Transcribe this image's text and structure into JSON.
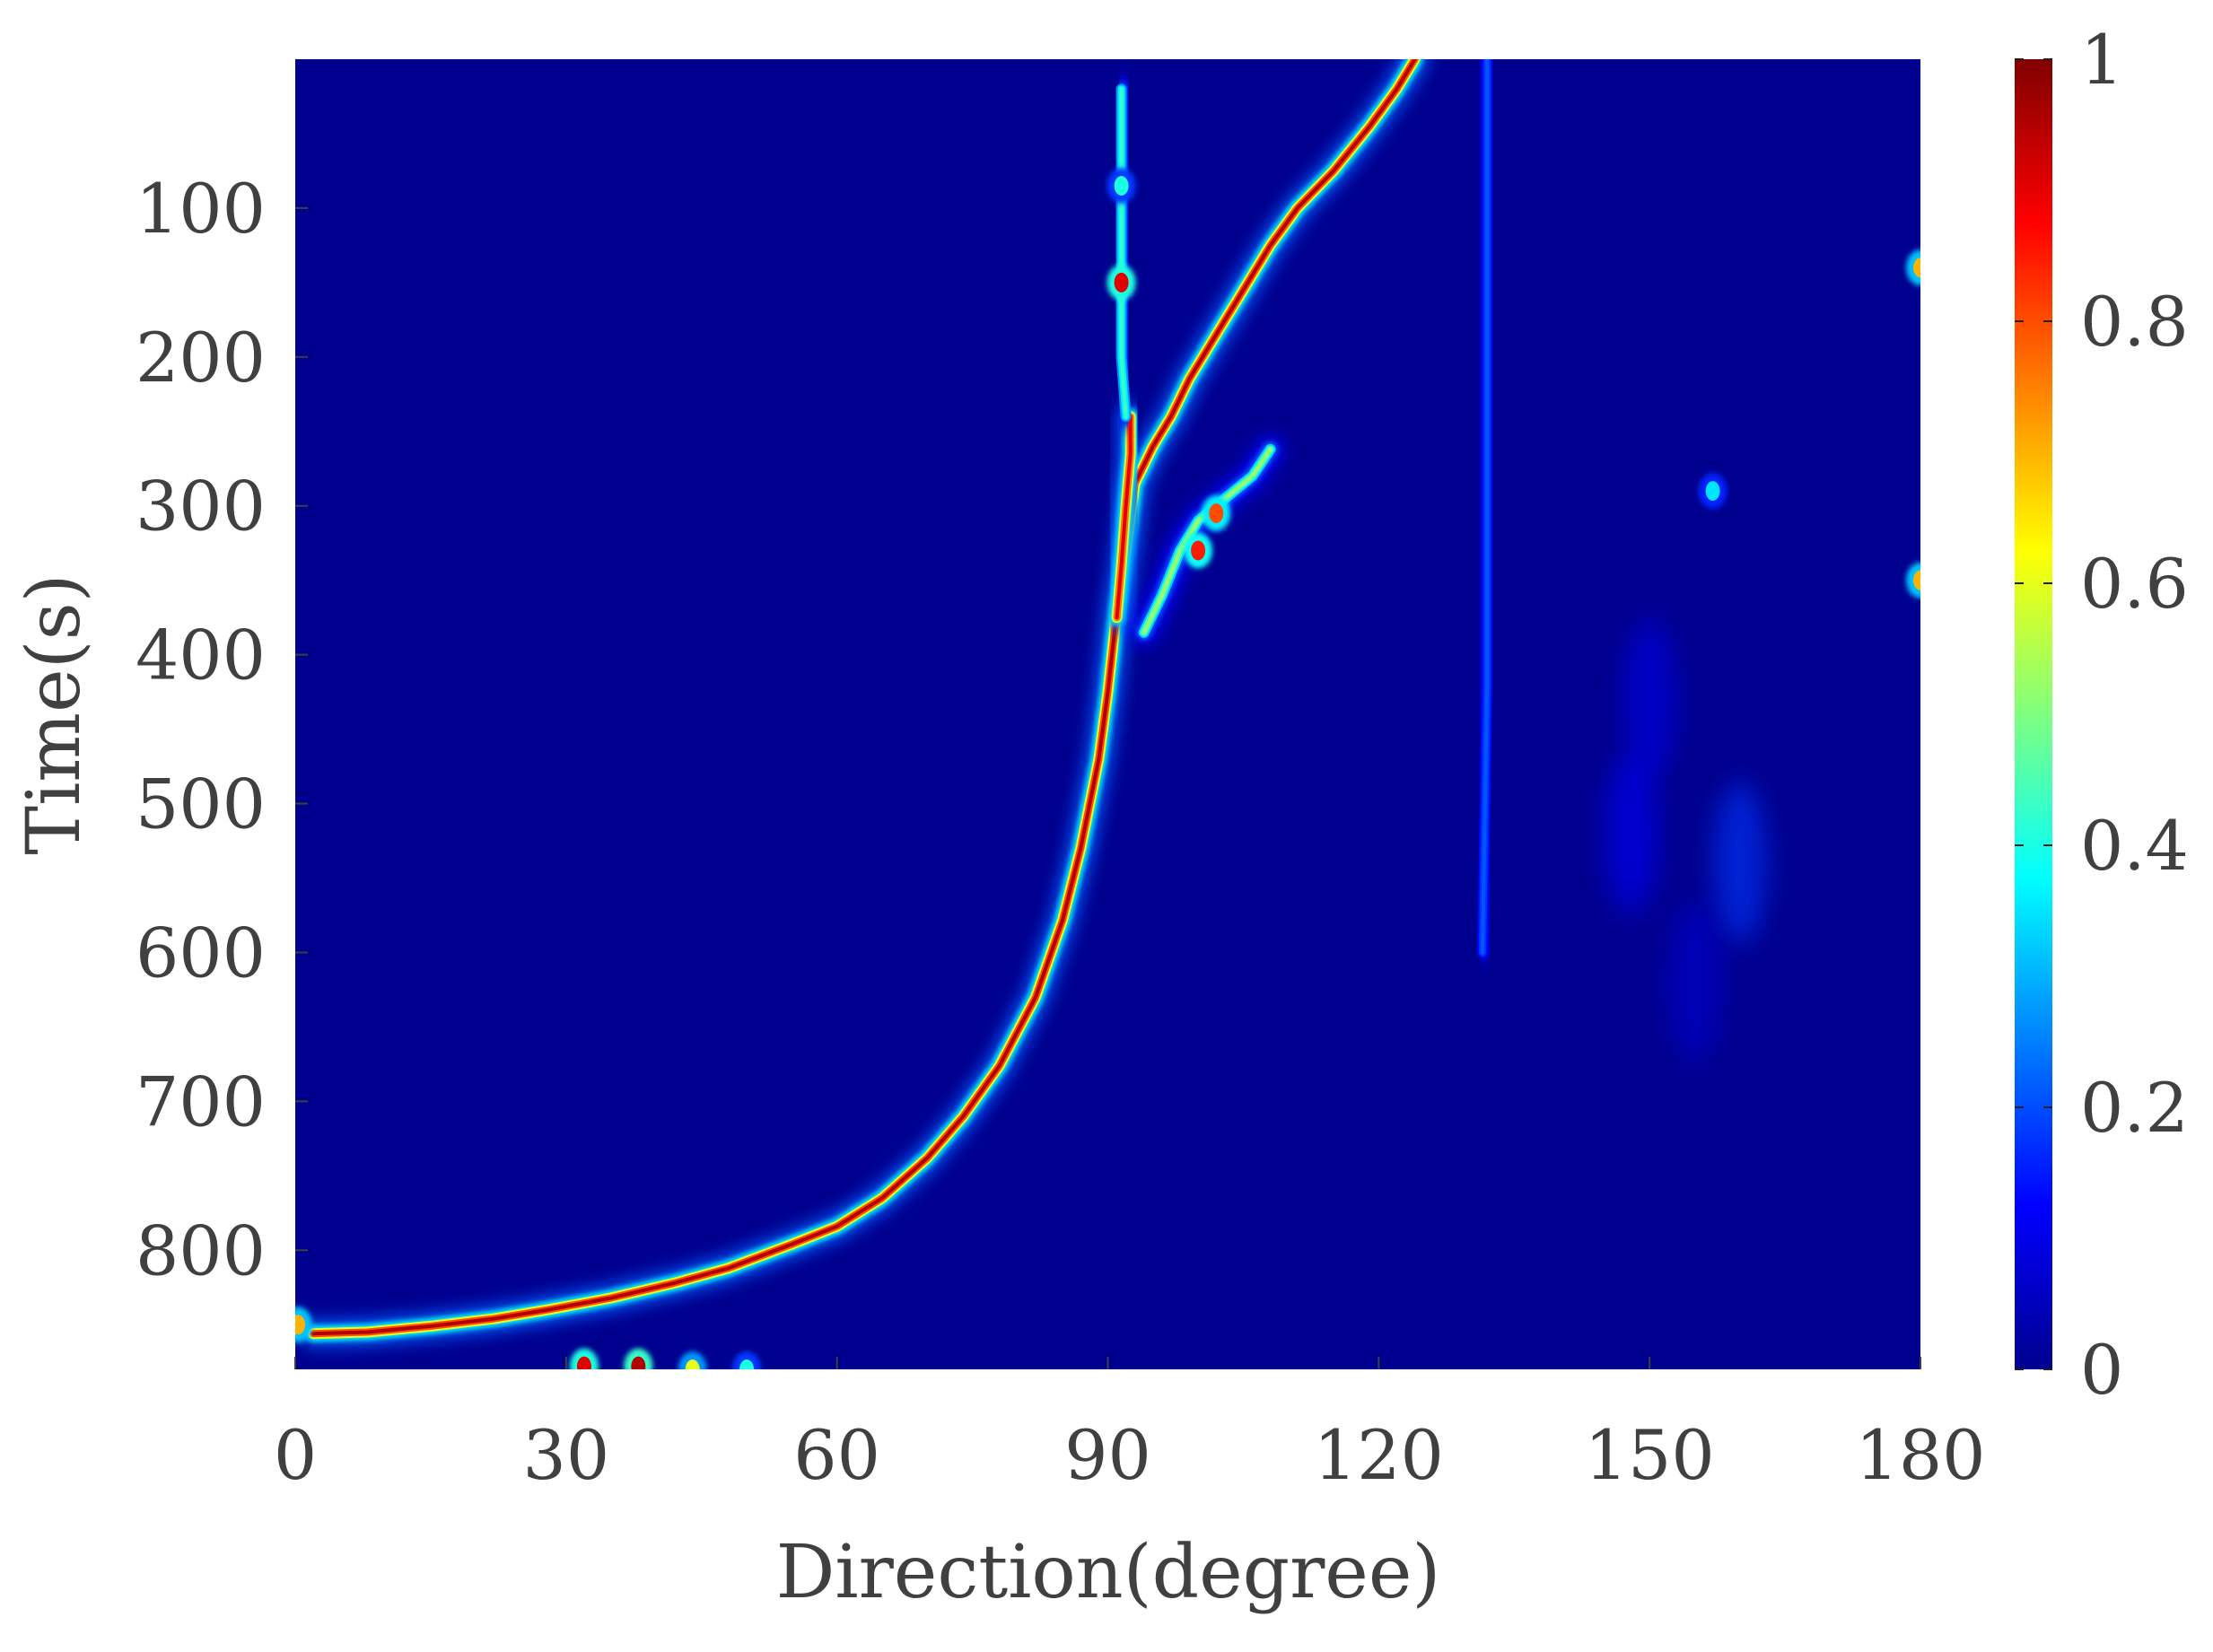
{
  "chart_data": {
    "type": "heatmap",
    "title": "",
    "xlabel": "Direction(degree)",
    "ylabel": "Time(s)",
    "xlim": [
      0,
      180
    ],
    "ylim": [
      0,
      880
    ],
    "y_reversed": true,
    "xticks": [
      0,
      30,
      60,
      90,
      120,
      150,
      180
    ],
    "xtick_labels": [
      "0",
      "30",
      "60",
      "90",
      "120",
      "150",
      "180"
    ],
    "yticks": [
      100,
      200,
      300,
      400,
      500,
      600,
      700,
      800
    ],
    "ytick_labels": [
      "100",
      "200",
      "300",
      "400",
      "500",
      "600",
      "700",
      "800"
    ],
    "colorbar": {
      "colormap": "jet",
      "range": [
        0,
        1
      ],
      "ticks": [
        0,
        0.2,
        0.4,
        0.6,
        0.8,
        1
      ],
      "tick_labels": [
        "0",
        "0.2",
        "0.4",
        "0.6",
        "0.8",
        "1"
      ]
    },
    "background_value": 0,
    "series": [
      {
        "kind": "ridge",
        "intensity": 1.0,
        "points": [
          [
            2,
            856
          ],
          [
            8,
            855
          ],
          [
            15,
            851
          ],
          [
            22,
            846
          ],
          [
            28,
            840
          ],
          [
            35,
            832
          ],
          [
            42,
            822
          ],
          [
            48,
            812
          ],
          [
            55,
            796
          ],
          [
            60,
            784
          ],
          [
            65,
            765
          ],
          [
            70,
            738
          ],
          [
            74,
            710
          ],
          [
            78,
            676
          ],
          [
            82,
            630
          ],
          [
            85,
            578
          ],
          [
            87,
            530
          ],
          [
            89,
            470
          ],
          [
            90,
            425
          ],
          [
            91,
            370
          ],
          [
            92,
            330
          ],
          [
            93,
            285
          ],
          [
            95,
            260
          ],
          [
            97,
            240
          ],
          [
            99,
            215
          ],
          [
            102,
            185
          ],
          [
            105,
            155
          ],
          [
            108,
            125
          ],
          [
            111,
            100
          ],
          [
            115,
            75
          ],
          [
            119,
            45
          ],
          [
            122,
            20
          ],
          [
            124,
            0
          ]
        ]
      },
      {
        "kind": "ridge",
        "intensity": 0.95,
        "points": [
          [
            91,
            375
          ],
          [
            91.5,
            340
          ],
          [
            92,
            300
          ],
          [
            92.5,
            265
          ],
          [
            92.5,
            240
          ]
        ]
      },
      {
        "kind": "ridge",
        "intensity": 0.45,
        "points": [
          [
            92,
            240
          ],
          [
            91.5,
            200
          ],
          [
            91.5,
            170
          ],
          [
            91.5,
            140
          ],
          [
            91.5,
            100
          ],
          [
            91.5,
            20
          ]
        ]
      },
      {
        "kind": "ridge",
        "intensity": 0.55,
        "points": [
          [
            94,
            385
          ],
          [
            96,
            360
          ],
          [
            98,
            330
          ],
          [
            100,
            310
          ],
          [
            103,
            295
          ],
          [
            106,
            280
          ],
          [
            108,
            262
          ]
        ]
      },
      {
        "kind": "ridge",
        "intensity": 0.22,
        "points": [
          [
            132,
            0
          ],
          [
            132,
            200
          ],
          [
            132,
            420
          ],
          [
            131.5,
            600
          ]
        ]
      }
    ],
    "hot_spots": [
      {
        "x": 91.5,
        "y": 150,
        "value": 0.9
      },
      {
        "x": 91.5,
        "y": 85,
        "value": 0.4
      },
      {
        "x": 100,
        "y": 330,
        "value": 0.85
      },
      {
        "x": 102,
        "y": 305,
        "value": 0.8
      },
      {
        "x": 157,
        "y": 290,
        "value": 0.35
      },
      {
        "x": 0.3,
        "y": 850,
        "value": 0.7
      },
      {
        "x": 180,
        "y": 140,
        "value": 0.7
      },
      {
        "x": 180,
        "y": 350,
        "value": 0.7
      },
      {
        "x": 32,
        "y": 878,
        "value": 0.9
      },
      {
        "x": 38,
        "y": 878,
        "value": 0.95
      },
      {
        "x": 44,
        "y": 880,
        "value": 0.6
      },
      {
        "x": 50,
        "y": 880,
        "value": 0.4
      }
    ],
    "faint_patches": [
      {
        "x": 148,
        "y": 520,
        "value": 0.12
      },
      {
        "x": 150,
        "y": 430,
        "value": 0.1
      },
      {
        "x": 160,
        "y": 540,
        "value": 0.18
      },
      {
        "x": 155,
        "y": 620,
        "value": 0.08
      }
    ]
  }
}
